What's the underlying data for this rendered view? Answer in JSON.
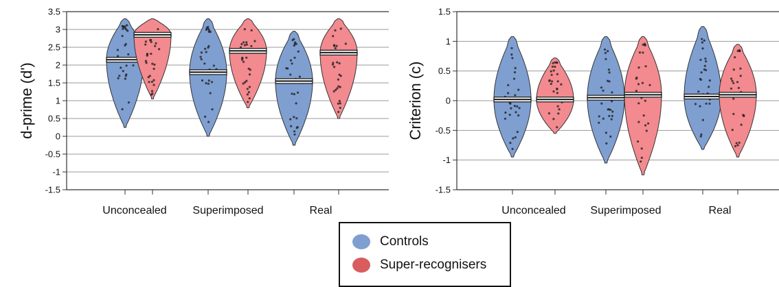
{
  "colors": {
    "controls": "#7f9fd1",
    "super": "#f28a8f",
    "outline": "#333333"
  },
  "legend": {
    "items": [
      {
        "label": "Controls",
        "color": "#7f9fd1"
      },
      {
        "label": "Super-recognisers",
        "color": "#d95c5f"
      }
    ]
  },
  "chart_data": [
    {
      "type": "violin",
      "ylabel": "d-prime (d')",
      "ylim": [
        -1.5,
        3.5
      ],
      "yticks": [
        -1.5,
        -1,
        -0.5,
        0,
        0.5,
        1,
        1.5,
        2,
        2.5,
        3,
        3.5
      ],
      "ytick_labels": [
        "-1.5",
        "-1",
        "-0.5",
        "0",
        "0.5",
        "1",
        "1.5",
        "2",
        "2.5",
        "3",
        "3.5"
      ],
      "grid": true,
      "categories": [
        "Unconcealed",
        "Superimposed",
        "Real"
      ],
      "series": [
        {
          "name": "Controls",
          "medians": [
            2.15,
            1.8,
            1.55
          ],
          "ranges": [
            [
              0.25,
              3.3
            ],
            [
              0.0,
              3.3
            ],
            [
              -0.25,
              2.95
            ]
          ]
        },
        {
          "name": "Super-recognisers",
          "medians": [
            2.85,
            2.4,
            2.35
          ],
          "ranges": [
            [
              1.05,
              3.3
            ],
            [
              0.8,
              3.3
            ],
            [
              0.5,
              3.3
            ]
          ]
        }
      ]
    },
    {
      "type": "violin",
      "ylabel": "Criterion (c)",
      "ylim": [
        -1.5,
        1.5
      ],
      "yticks": [
        -1.5,
        -1,
        -0.5,
        0,
        0.5,
        1,
        1.5
      ],
      "ytick_labels": [
        "-1.5",
        "-1",
        "-0.5",
        "0",
        "0.5",
        "1",
        "1.5"
      ],
      "grid": true,
      "categories": [
        "Unconcealed",
        "Superimposed",
        "Real"
      ],
      "series": [
        {
          "name": "Controls",
          "medians": [
            0.02,
            0.05,
            0.07
          ],
          "ranges": [
            [
              -0.95,
              1.08
            ],
            [
              -1.05,
              1.08
            ],
            [
              -0.82,
              1.25
            ]
          ]
        },
        {
          "name": "Super-recognisers",
          "medians": [
            0.02,
            0.1,
            0.1
          ],
          "ranges": [
            [
              -0.55,
              0.72
            ],
            [
              -1.25,
              1.08
            ],
            [
              -0.95,
              0.95
            ]
          ]
        }
      ]
    }
  ]
}
